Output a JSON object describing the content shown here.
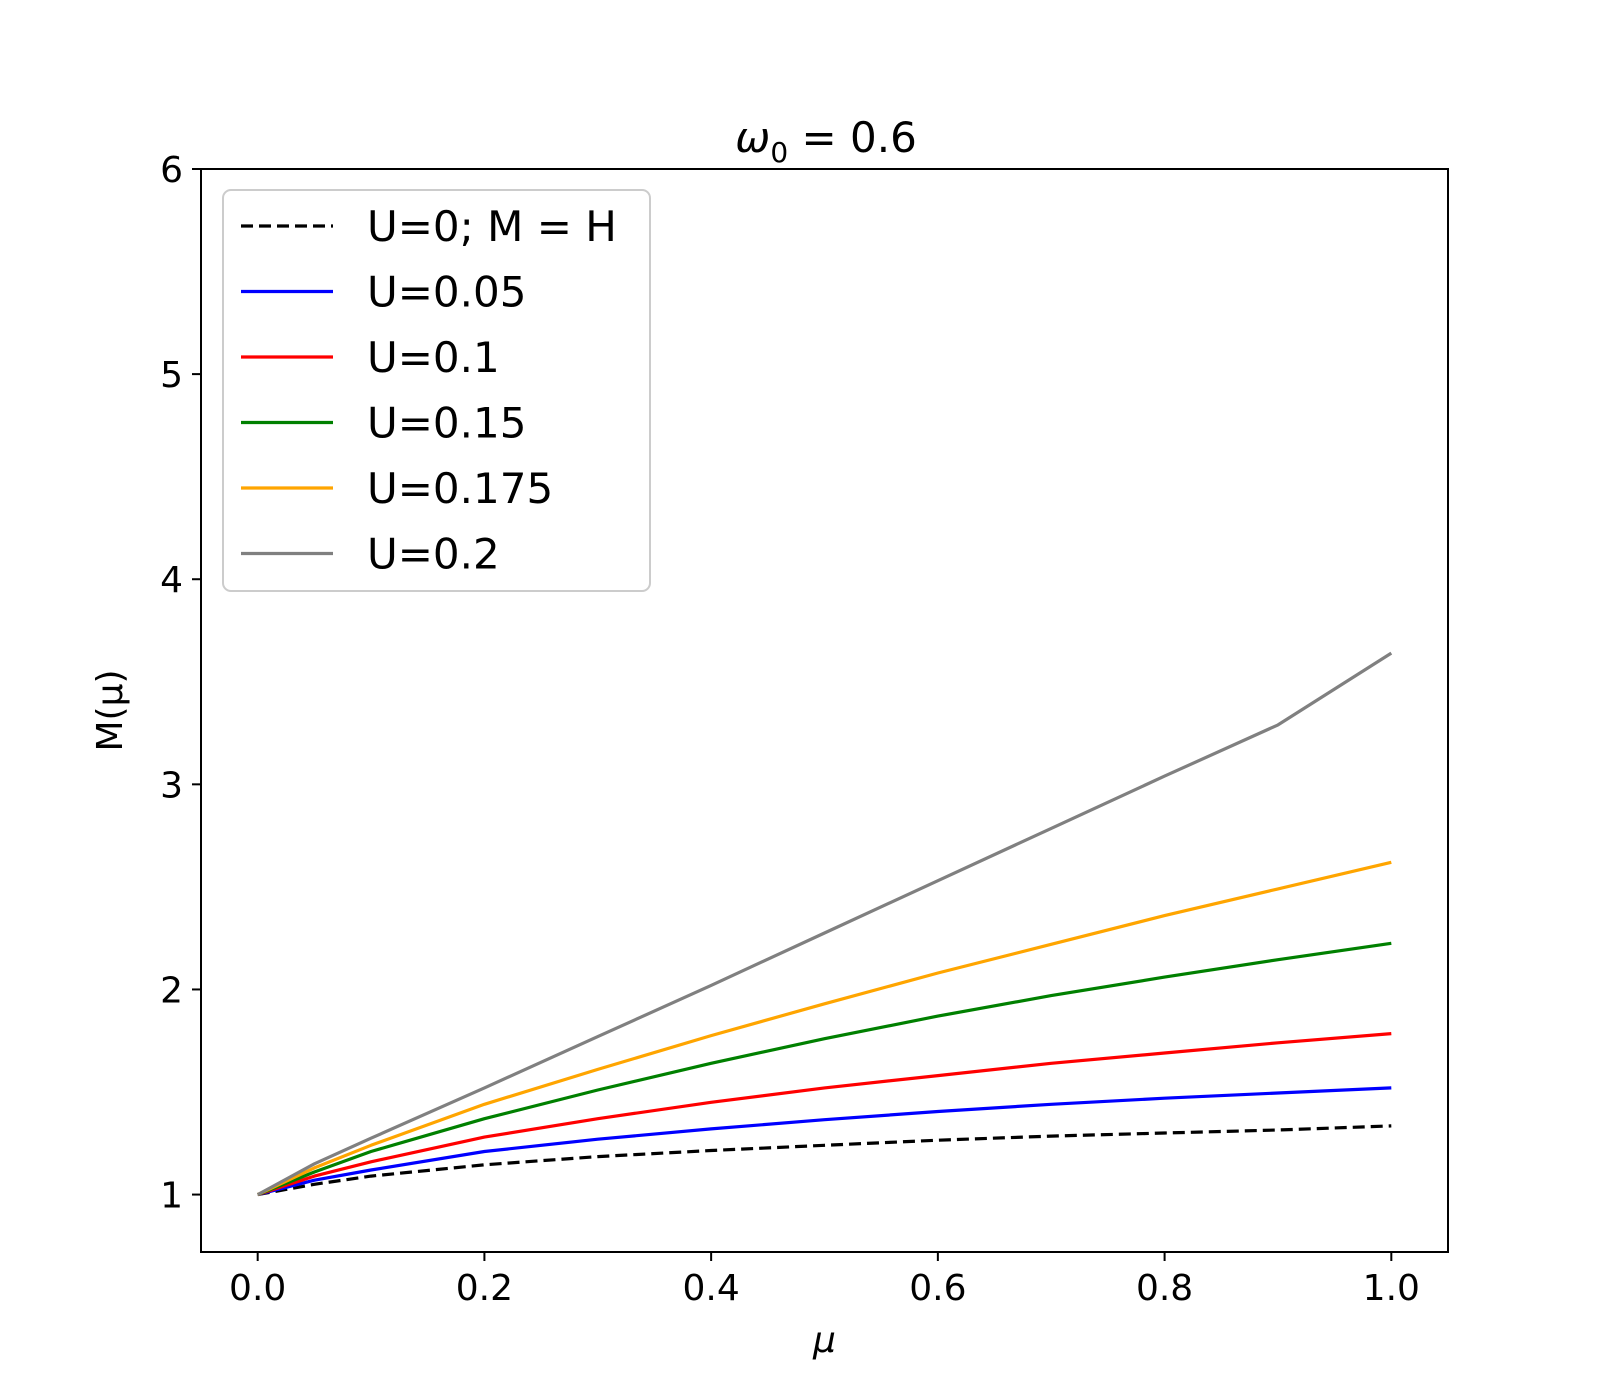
{
  "chart_data": {
    "type": "line",
    "title_parts": {
      "symbol": "ω",
      "subscript": "0",
      "rest": " = 0.6"
    },
    "xlabel": "μ",
    "ylabel": "M(μ)",
    "xlim": [
      -0.05,
      1.05
    ],
    "ylim": [
      0.72,
      6.0
    ],
    "xticks": [
      0.0,
      0.2,
      0.4,
      0.6,
      0.8,
      1.0
    ],
    "xtick_labels": [
      "0.0",
      "0.2",
      "0.4",
      "0.6",
      "0.8",
      "1.0"
    ],
    "yticks": [
      1,
      2,
      3,
      4,
      5,
      6
    ],
    "ytick_labels": [
      "1",
      "2",
      "3",
      "4",
      "5",
      "6"
    ],
    "grid": false,
    "legend_position": "top-left",
    "x": [
      0.0,
      0.05,
      0.1,
      0.2,
      0.3,
      0.4,
      0.5,
      0.6,
      0.7,
      0.8,
      0.9,
      1.0
    ],
    "series": [
      {
        "name": "U=0; M = H",
        "color": "#000000",
        "dashed": true,
        "values": [
          1.0,
          1.05,
          1.09,
          1.145,
          1.185,
          1.215,
          1.24,
          1.265,
          1.285,
          1.3,
          1.315,
          1.335
        ]
      },
      {
        "name": "U=0.05",
        "color": "#0000ff",
        "dashed": false,
        "values": [
          1.0,
          1.07,
          1.12,
          1.21,
          1.27,
          1.32,
          1.365,
          1.405,
          1.44,
          1.47,
          1.495,
          1.52
        ]
      },
      {
        "name": "U=0.1",
        "color": "#ff0000",
        "dashed": false,
        "values": [
          1.0,
          1.09,
          1.16,
          1.28,
          1.37,
          1.45,
          1.52,
          1.58,
          1.64,
          1.69,
          1.74,
          1.785
        ]
      },
      {
        "name": "U=0.15",
        "color": "#008000",
        "dashed": false,
        "values": [
          1.0,
          1.11,
          1.21,
          1.37,
          1.51,
          1.64,
          1.76,
          1.87,
          1.97,
          2.06,
          2.145,
          2.225
        ]
      },
      {
        "name": "U=0.175",
        "color": "#ffa500",
        "dashed": false,
        "values": [
          1.0,
          1.13,
          1.24,
          1.44,
          1.61,
          1.775,
          1.93,
          2.08,
          2.22,
          2.36,
          2.49,
          2.62
        ]
      },
      {
        "name": "U=0.2",
        "color": "#808080",
        "dashed": false,
        "values": [
          1.0,
          1.15,
          1.275,
          1.52,
          1.77,
          2.02,
          2.275,
          2.53,
          2.785,
          3.04,
          3.29,
          3.64
        ]
      }
    ]
  }
}
